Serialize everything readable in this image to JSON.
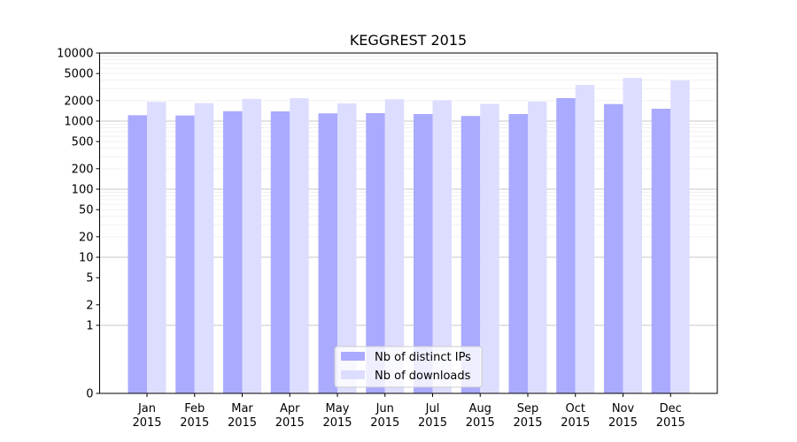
{
  "chart_data": {
    "type": "bar",
    "title": "KEGGREST 2015",
    "xlabel": "",
    "ylabel": "",
    "y_scale": "symlog",
    "ylim": [
      0,
      10000
    ],
    "y_ticks": [
      0,
      1,
      2,
      5,
      10,
      20,
      50,
      100,
      200,
      500,
      1000,
      2000,
      5000,
      10000
    ],
    "y_tick_labels": [
      "0",
      "1",
      "2",
      "5",
      "10",
      "20",
      "50",
      "100",
      "200",
      "500",
      "1000",
      "2000",
      "5000",
      "10000"
    ],
    "categories": [
      [
        "Jan",
        "2015"
      ],
      [
        "Feb",
        "2015"
      ],
      [
        "Mar",
        "2015"
      ],
      [
        "Apr",
        "2015"
      ],
      [
        "May",
        "2015"
      ],
      [
        "Jun",
        "2015"
      ],
      [
        "Jul",
        "2015"
      ],
      [
        "Aug",
        "2015"
      ],
      [
        "Sep",
        "2015"
      ],
      [
        "Oct",
        "2015"
      ],
      [
        "Nov",
        "2015"
      ],
      [
        "Dec",
        "2015"
      ]
    ],
    "series": [
      {
        "name": "Nb of distinct IPs",
        "color": "#aaaaff",
        "values": [
          1220,
          1210,
          1400,
          1390,
          1300,
          1310,
          1270,
          1190,
          1270,
          2180,
          1780,
          1520
        ]
      },
      {
        "name": "Nb of downloads",
        "color": "#ddddff",
        "values": [
          1920,
          1840,
          2120,
          2170,
          1820,
          2100,
          2030,
          1790,
          1930,
          3400,
          4300,
          3950
        ]
      }
    ],
    "grid": true,
    "legend_position": "bottom-center"
  }
}
